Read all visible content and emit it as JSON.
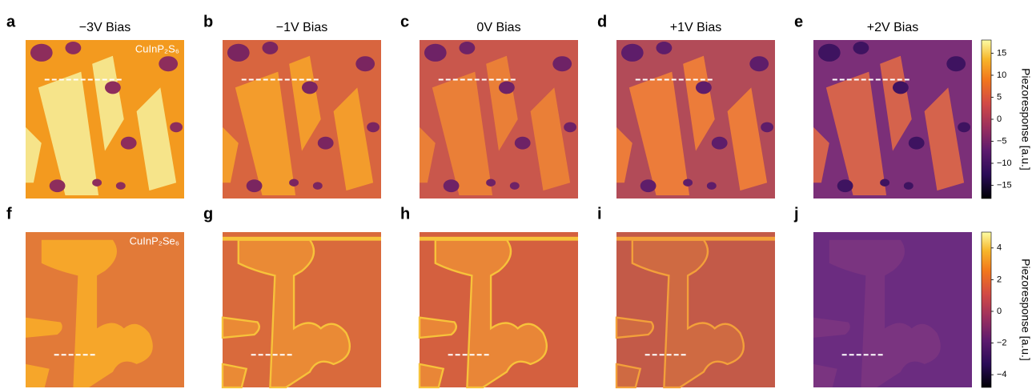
{
  "panels": [
    {
      "letter": "a",
      "title": "−3V Bias",
      "material": "CuInP₂S₆"
    },
    {
      "letter": "b",
      "title": "−1V Bias"
    },
    {
      "letter": "c",
      "title": "0V Bias"
    },
    {
      "letter": "d",
      "title": "+1V Bias"
    },
    {
      "letter": "e",
      "title": "+2V Bias"
    },
    {
      "letter": "f",
      "material": "CuInP₂Se₆"
    },
    {
      "letter": "g"
    },
    {
      "letter": "h"
    },
    {
      "letter": "i"
    },
    {
      "letter": "j"
    }
  ],
  "colorbars": [
    {
      "label": "Piezoresponse [a.u.]",
      "range": [
        -18,
        18
      ],
      "ticks": [
        15,
        10,
        5,
        0,
        {
          "value": -5,
          "label": "−5"
        },
        {
          "value": -10,
          "label": "−10"
        },
        {
          "value": -15,
          "label": "−15"
        }
      ]
    },
    {
      "label": "Piezoresponse [a.u.]",
      "range": [
        -4.8,
        5
      ],
      "ticks": [
        4,
        2,
        0,
        {
          "value": -2,
          "label": "−2"
        },
        {
          "value": -4,
          "label": "−4"
        }
      ]
    }
  ]
}
